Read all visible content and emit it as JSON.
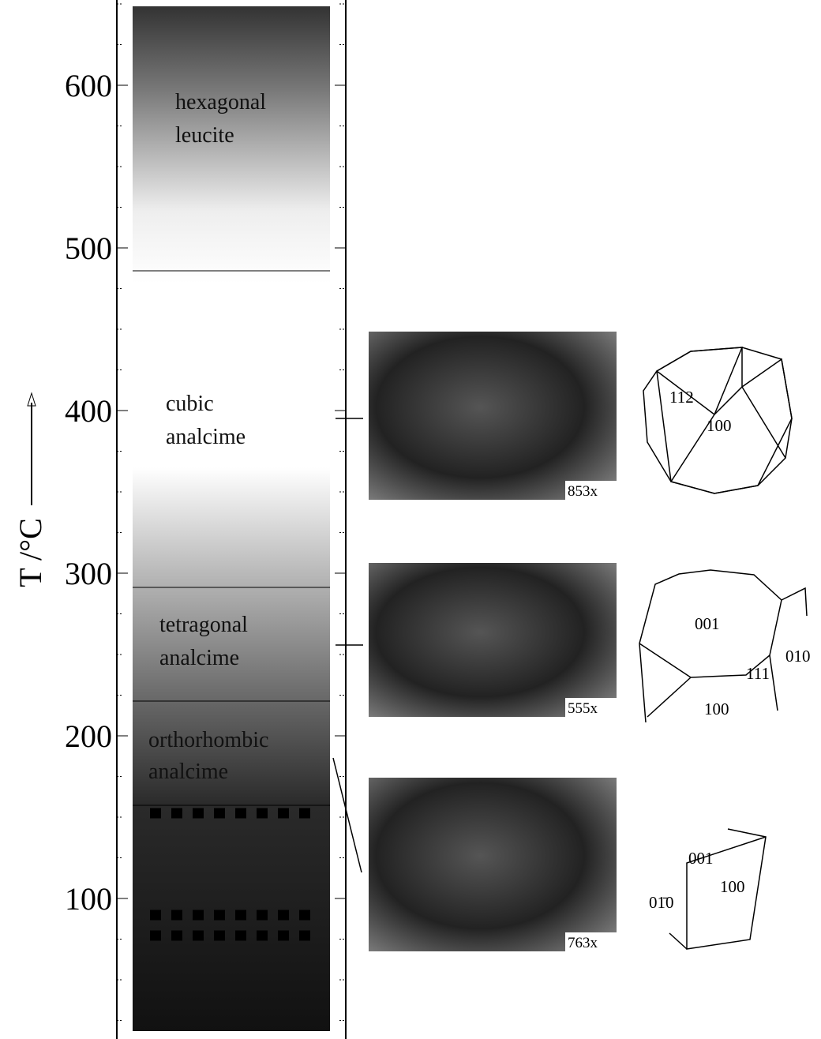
{
  "axis": {
    "label": "T /°C",
    "ticks": [
      600,
      500,
      400,
      300,
      200,
      100
    ]
  },
  "phases": [
    {
      "lines": [
        "hexagonal",
        "leucite"
      ]
    },
    {
      "lines": [
        "cubic",
        "analcime"
      ]
    },
    {
      "lines": [
        "tetragonal",
        "analcime"
      ]
    },
    {
      "lines": [
        "orthorhombic",
        "analcime"
      ]
    }
  ],
  "micrographs": [
    {
      "magnification": "853x"
    },
    {
      "magnification": "555x"
    },
    {
      "magnification": "763x"
    }
  ],
  "crystals": [
    {
      "faces": [
        "112",
        "100"
      ]
    },
    {
      "faces": [
        "001",
        "010",
        "111",
        "100"
      ]
    },
    {
      "faces": [
        "001",
        "100",
        "01̄0"
      ]
    }
  ]
}
